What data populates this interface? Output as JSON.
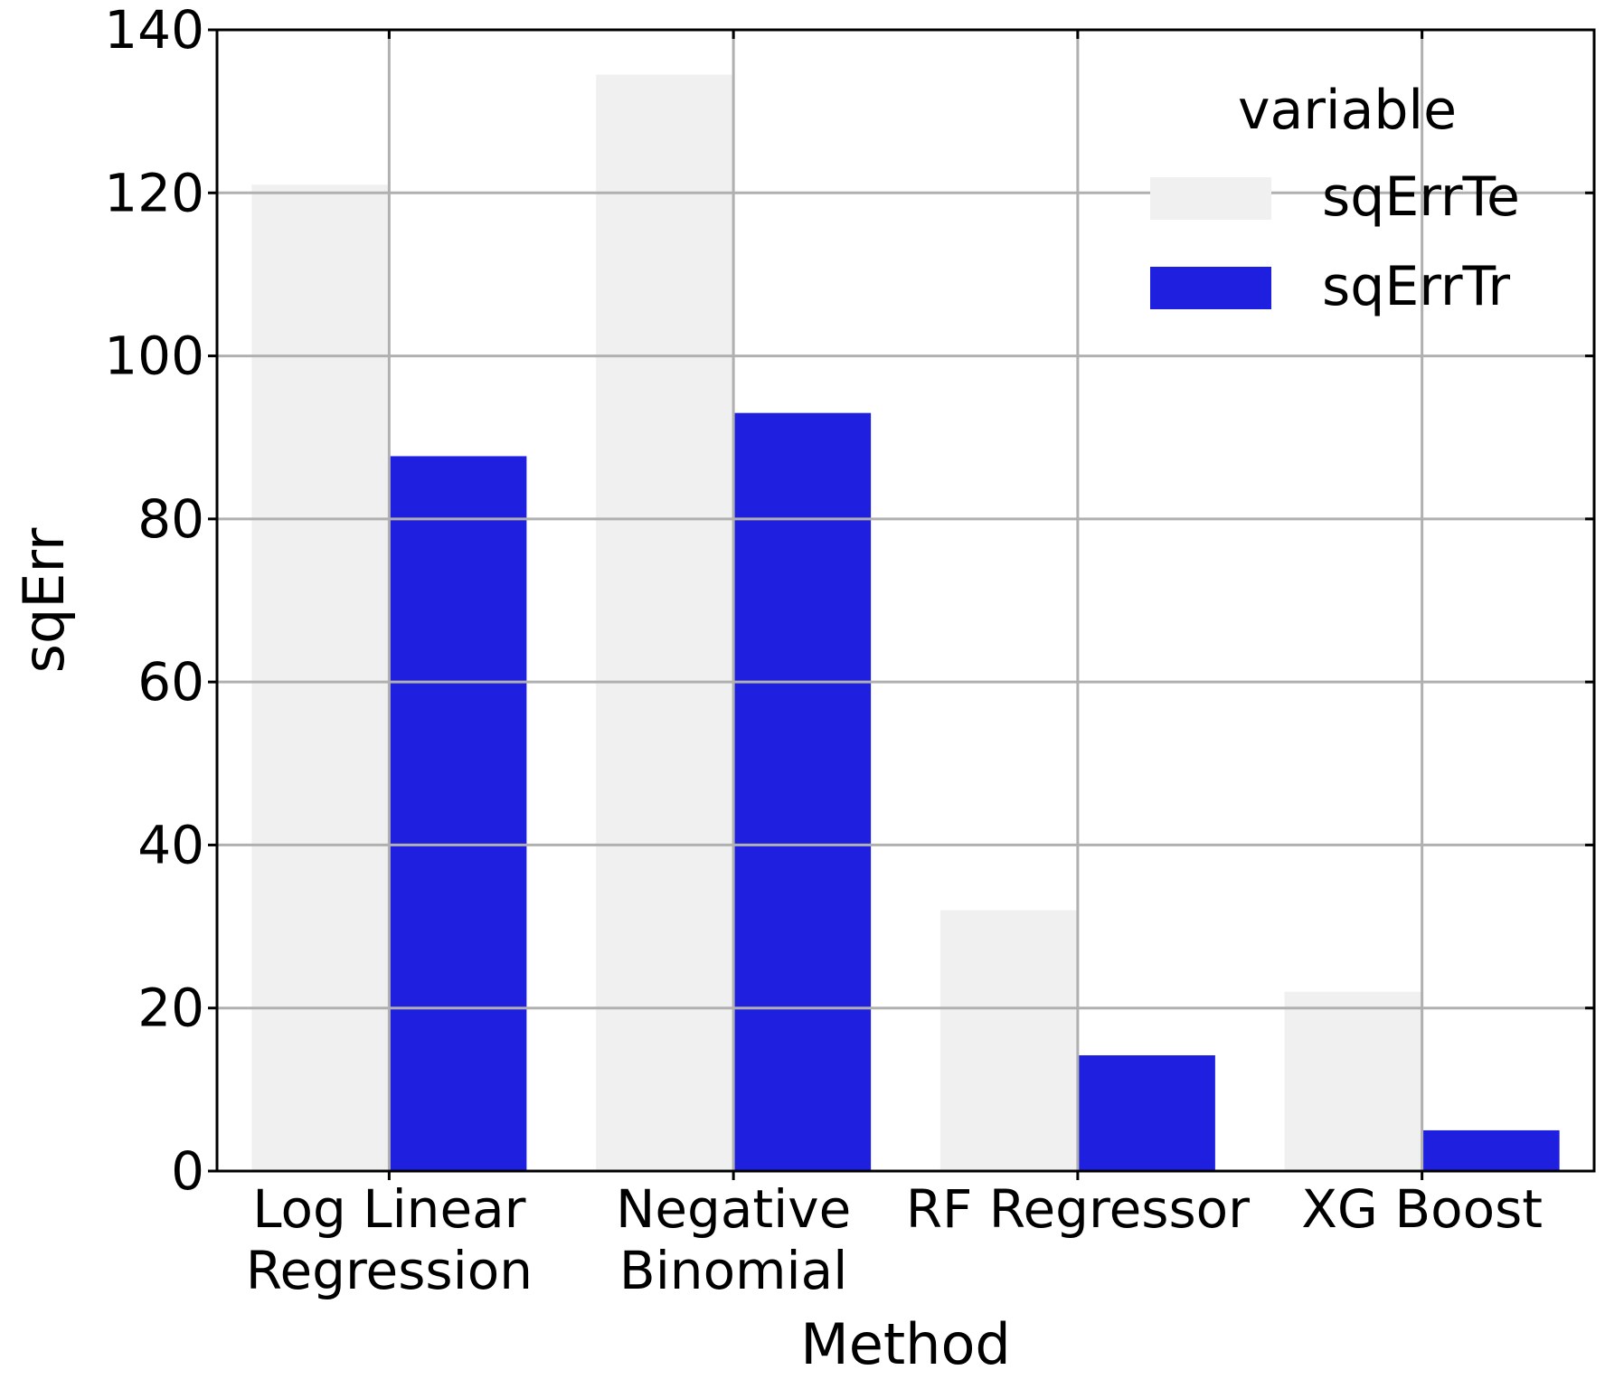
{
  "chart_data": {
    "type": "bar",
    "categories": [
      [
        "Log Linear",
        "Regression"
      ],
      [
        "Negative",
        "Binomial"
      ],
      [
        "RF Regressor"
      ],
      [
        "XG Boost"
      ]
    ],
    "series": [
      {
        "name": "sqErrTe",
        "color": "#f0f0f0",
        "values": [
          121,
          134.5,
          32,
          22
        ]
      },
      {
        "name": "sqErrTr",
        "color": "#1f1fe0",
        "values": [
          87.7,
          93,
          14.2,
          5
        ]
      }
    ],
    "xlabel": "Method",
    "ylabel": "sqErr",
    "ylim": [
      0,
      140
    ],
    "yticks": [
      0,
      20,
      40,
      60,
      80,
      100,
      120,
      140
    ],
    "grid": true,
    "legend": {
      "title": "variable",
      "placement": "top-right"
    }
  }
}
